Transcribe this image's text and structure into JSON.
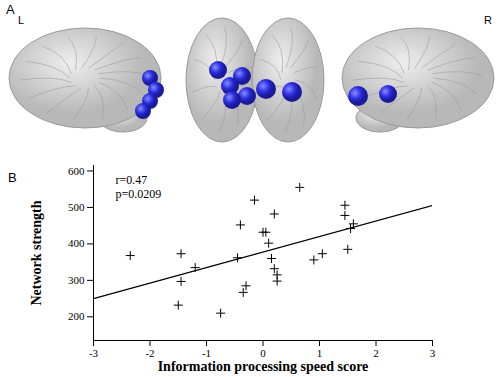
{
  "figure": {
    "panel_a": {
      "label": "A",
      "left": "L",
      "right": "R"
    },
    "panel_b": {
      "label": "B"
    }
  },
  "chart_data": {
    "type": "scatter",
    "x_label": "Information processing speed score",
    "y_label": "Network strength",
    "x": [
      -2.35,
      -1.5,
      -1.45,
      -1.45,
      -1.2,
      -0.75,
      -0.45,
      -0.4,
      -0.35,
      -0.3,
      -0.15,
      0.0,
      0.05,
      0.1,
      0.15,
      0.2,
      0.25,
      0.25,
      0.2,
      0.65,
      0.9,
      1.05,
      1.45,
      1.45,
      1.5,
      1.55,
      1.6
    ],
    "values": [
      368,
      232,
      297,
      373,
      335,
      210,
      362,
      452,
      267,
      285,
      520,
      432,
      432,
      402,
      360,
      332,
      315,
      298,
      482,
      555,
      356,
      373,
      506,
      478,
      385,
      442,
      455
    ],
    "color": "#000000",
    "marker": "plus",
    "xlim": [
      -3,
      3
    ],
    "xticks": [
      -3,
      -2,
      -1,
      0,
      1,
      2,
      3
    ],
    "ylim": [
      135,
      615
    ],
    "yticks": [
      200,
      300,
      400,
      500,
      600
    ],
    "grid": false,
    "fit_line": {
      "x": [
        -3,
        3
      ],
      "y": [
        250,
        505
      ],
      "color": "#000000"
    },
    "annotations": [
      "r=0.47",
      "p=0.0209"
    ]
  }
}
